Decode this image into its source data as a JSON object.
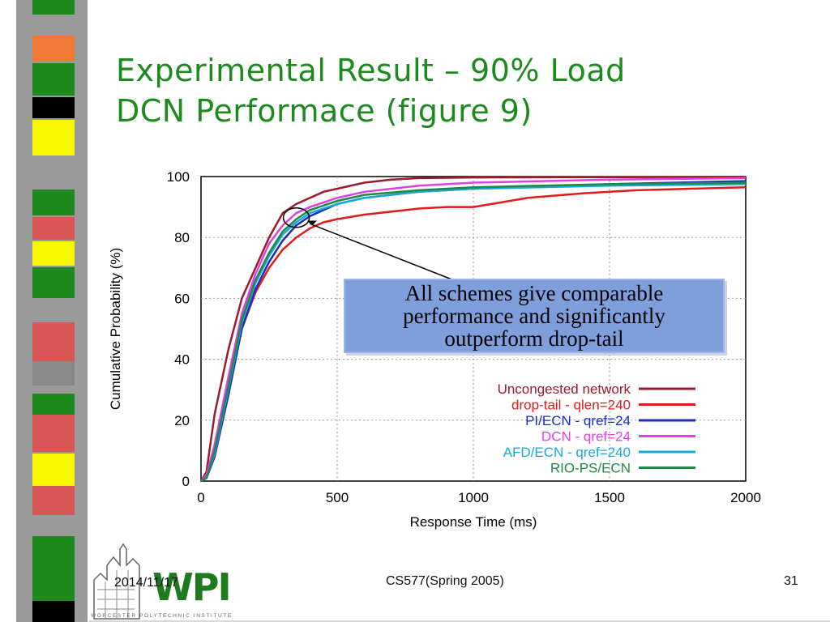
{
  "slide": {
    "title_line1": "Experimental Result – 90% Load",
    "title_line2": "DCN Performace (figure 9)",
    "date": "2014/11/17",
    "course": "CS577(Spring 2005)",
    "page_number": "31",
    "logo_text": "WPI",
    "logo_subtitle": "WORCESTER POLYTECHNIC INSTITUTE",
    "title_color": "#1d8a1d"
  },
  "callout": {
    "lines": [
      "All schemes give comparable",
      "performance and significantly",
      "outperform drop-tail"
    ]
  },
  "chart_data": {
    "type": "line",
    "xlabel": "Response Time (ms)",
    "ylabel": "Cumulative Probability (%)",
    "xlim": [
      0,
      2000
    ],
    "ylim": [
      0,
      100
    ],
    "xticks": [
      0,
      500,
      1000,
      1500,
      2000
    ],
    "yticks": [
      0,
      20,
      40,
      60,
      80,
      100
    ],
    "grid": true,
    "legend_position": "bottom-right",
    "series": [
      {
        "name": "Uncongested network",
        "color": "#9b1b2a",
        "x": [
          0,
          20,
          50,
          100,
          150,
          200,
          250,
          300,
          350,
          400,
          450,
          500,
          600,
          700,
          800,
          1000,
          1500,
          2000
        ],
        "y": [
          0,
          3,
          22,
          43,
          60,
          70,
          80,
          88,
          91,
          93,
          95,
          96,
          98,
          99,
          99.5,
          99.7,
          99.8,
          99.9
        ]
      },
      {
        "name": "drop-tail - qlen=240",
        "color": "#e31a1a",
        "x": [
          0,
          20,
          50,
          100,
          150,
          200,
          250,
          300,
          350,
          400,
          450,
          500,
          600,
          700,
          800,
          900,
          1000,
          1100,
          1200,
          1400,
          1600,
          1800,
          2000
        ],
        "y": [
          0,
          1,
          8,
          30,
          50,
          62,
          70,
          76,
          80,
          83,
          85,
          86,
          87.5,
          88.5,
          89.5,
          90,
          90,
          91.5,
          93,
          94.5,
          95.5,
          96,
          96.5
        ]
      },
      {
        "name": "PI/ECN - qref=24",
        "color": "#1c2bc0",
        "x": [
          0,
          20,
          50,
          100,
          150,
          200,
          250,
          300,
          350,
          400,
          500,
          600,
          800,
          1000,
          1500,
          2000
        ],
        "y": [
          0,
          1,
          8,
          28,
          50,
          63,
          72,
          79,
          84,
          87,
          91,
          93,
          95,
          96,
          97.5,
          98.5
        ]
      },
      {
        "name": "DCN - qref=24",
        "color": "#e23fe2",
        "x": [
          0,
          20,
          50,
          100,
          150,
          200,
          250,
          300,
          350,
          400,
          500,
          600,
          800,
          1000,
          1500,
          2000
        ],
        "y": [
          0,
          2,
          12,
          34,
          55,
          68,
          78,
          84,
          88,
          90,
          93,
          95,
          97,
          98,
          99,
          99.5
        ]
      },
      {
        "name": "AFD/ECN - qref=240",
        "color": "#19a9d6",
        "x": [
          0,
          20,
          50,
          100,
          150,
          200,
          250,
          300,
          350,
          400,
          500,
          600,
          800,
          1000,
          1500,
          2000
        ],
        "y": [
          0,
          1,
          9,
          30,
          52,
          65,
          74,
          81,
          85,
          88,
          91,
          93,
          95,
          96,
          97,
          97.5
        ]
      },
      {
        "name": "RIO-PS/ECN",
        "color": "#1e8a4a",
        "x": [
          0,
          20,
          50,
          100,
          150,
          200,
          250,
          300,
          350,
          400,
          500,
          600,
          800,
          1000,
          1500,
          2000
        ],
        "y": [
          0,
          1,
          10,
          31,
          53,
          66,
          75,
          82,
          86,
          89,
          92,
          94,
          95.5,
          96.5,
          97.5,
          98
        ]
      }
    ]
  }
}
